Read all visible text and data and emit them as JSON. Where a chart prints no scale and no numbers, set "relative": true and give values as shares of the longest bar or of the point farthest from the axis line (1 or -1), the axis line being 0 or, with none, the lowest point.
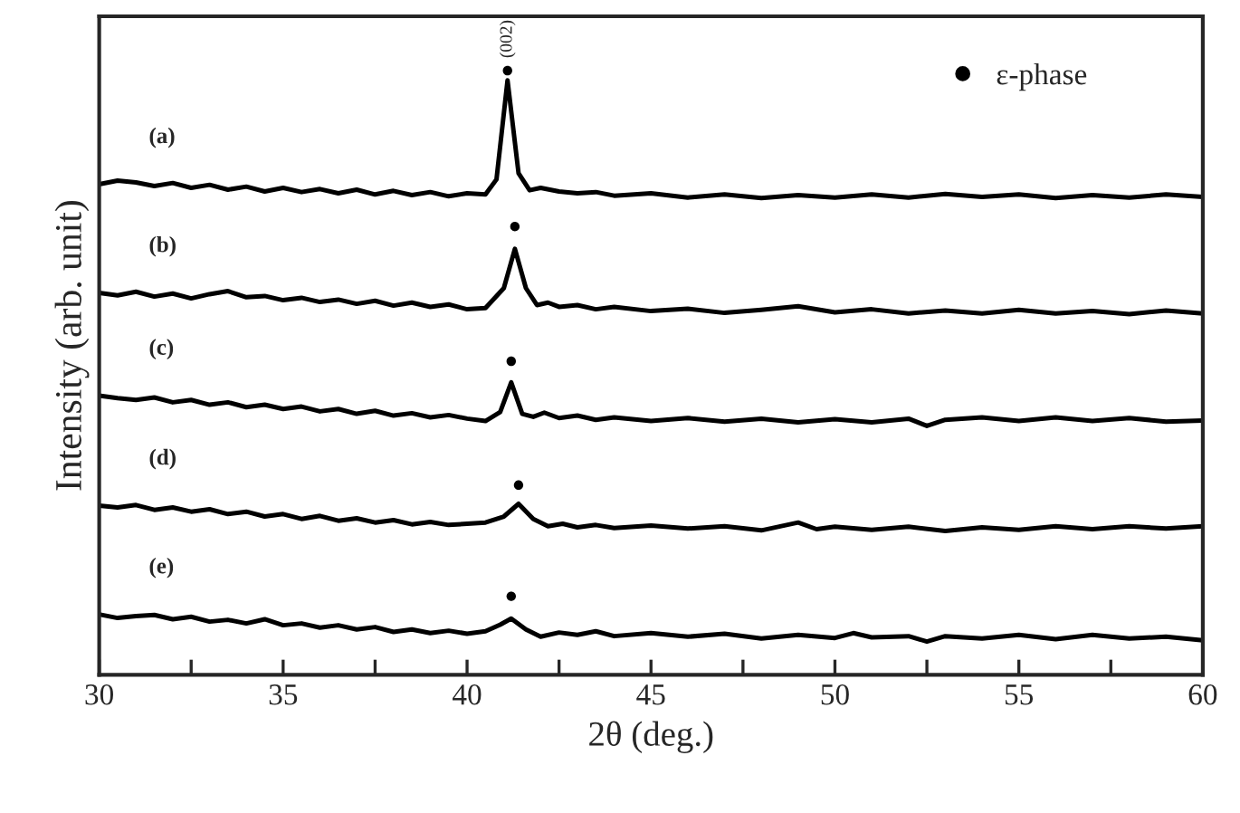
{
  "chart_data": {
    "type": "line",
    "relative": true,
    "xlabel": "2θ (deg.)",
    "ylabel": "Intensity (arb. unit)",
    "xlim": [
      30,
      60
    ],
    "xticks": [
      30,
      {
        "value": 32.5,
        "label": null
      },
      35,
      {
        "value": 37.5,
        "label": null
      },
      40,
      {
        "value": 42.5,
        "label": null
      },
      45,
      {
        "value": 47.5,
        "label": null
      },
      50,
      {
        "value": 52.5,
        "label": null
      },
      55,
      {
        "value": 57.5,
        "label": null
      },
      60
    ],
    "tick_labels": "x",
    "grid": false,
    "legend": "top right",
    "line_style": "solid",
    "annotations": [
      {
        "text": "(002)",
        "x": 41.1,
        "y": 1.0
      }
    ],
    "series": [
      {
        "name": "(a)",
        "color": "#000000",
        "x": [
          30,
          30.5,
          31,
          31.5,
          32,
          32.5,
          33,
          33.5,
          34,
          34.5,
          35,
          35.5,
          36,
          36.5,
          37,
          37.5,
          38,
          38.5,
          39,
          39.5,
          40,
          40.5,
          40.8,
          41.1,
          41.4,
          41.7,
          42,
          42.5,
          43,
          43.5,
          44,
          45,
          46,
          47,
          48,
          49,
          50,
          51,
          52,
          53,
          54,
          55,
          56,
          57,
          58,
          59,
          60
        ],
        "values": [
          0.812,
          0.818,
          0.815,
          0.809,
          0.814,
          0.806,
          0.811,
          0.803,
          0.808,
          0.8,
          0.806,
          0.799,
          0.804,
          0.797,
          0.803,
          0.795,
          0.801,
          0.794,
          0.799,
          0.792,
          0.797,
          0.795,
          0.82,
          0.984,
          0.83,
          0.802,
          0.806,
          0.8,
          0.797,
          0.799,
          0.793,
          0.797,
          0.79,
          0.795,
          0.789,
          0.794,
          0.79,
          0.795,
          0.79,
          0.796,
          0.791,
          0.795,
          0.789,
          0.794,
          0.79,
          0.795,
          0.791
        ]
      },
      {
        "name": "(b)",
        "color": "#000000",
        "x": [
          30,
          30.5,
          31,
          31.5,
          32,
          32.5,
          33,
          33.5,
          34,
          34.5,
          35,
          35.5,
          36,
          36.5,
          37,
          37.5,
          38,
          38.5,
          39,
          39.5,
          40,
          40.5,
          41.0,
          41.3,
          41.6,
          41.9,
          42.2,
          42.5,
          43,
          43.5,
          44,
          45,
          46,
          47,
          48,
          49,
          50,
          51,
          52,
          53,
          54,
          55,
          56,
          57,
          58,
          59,
          60
        ],
        "values": [
          0.632,
          0.628,
          0.634,
          0.626,
          0.631,
          0.623,
          0.63,
          0.635,
          0.625,
          0.627,
          0.62,
          0.624,
          0.617,
          0.621,
          0.614,
          0.619,
          0.611,
          0.616,
          0.609,
          0.613,
          0.605,
          0.607,
          0.64,
          0.705,
          0.64,
          0.612,
          0.616,
          0.609,
          0.612,
          0.605,
          0.609,
          0.602,
          0.606,
          0.599,
          0.604,
          0.61,
          0.6,
          0.605,
          0.598,
          0.603,
          0.598,
          0.604,
          0.598,
          0.602,
          0.597,
          0.603,
          0.598
        ]
      },
      {
        "name": "(c)",
        "color": "#000000",
        "x": [
          30,
          30.5,
          31,
          31.5,
          32,
          32.5,
          33,
          33.5,
          34,
          34.5,
          35,
          35.5,
          36,
          36.5,
          37,
          37.5,
          38,
          38.5,
          39,
          39.5,
          40,
          40.5,
          40.9,
          41.2,
          41.5,
          41.8,
          42.1,
          42.5,
          43,
          43.5,
          44,
          45,
          46,
          47,
          48,
          49,
          50,
          51,
          52,
          52.5,
          53,
          54,
          55,
          56,
          57,
          58,
          59,
          60
        ],
        "values": [
          0.462,
          0.458,
          0.455,
          0.459,
          0.451,
          0.455,
          0.447,
          0.451,
          0.443,
          0.447,
          0.44,
          0.444,
          0.436,
          0.44,
          0.432,
          0.437,
          0.429,
          0.433,
          0.426,
          0.43,
          0.424,
          0.42,
          0.435,
          0.484,
          0.432,
          0.427,
          0.434,
          0.425,
          0.429,
          0.422,
          0.426,
          0.42,
          0.425,
          0.419,
          0.424,
          0.418,
          0.423,
          0.418,
          0.424,
          0.412,
          0.422,
          0.426,
          0.42,
          0.426,
          0.42,
          0.425,
          0.419,
          0.421
        ]
      },
      {
        "name": "(d)",
        "color": "#000000",
        "x": [
          30,
          30.5,
          31,
          31.5,
          32,
          32.5,
          33,
          33.5,
          34,
          34.5,
          35,
          35.5,
          36,
          36.5,
          37,
          37.5,
          38,
          38.5,
          39,
          39.5,
          40,
          40.5,
          41.0,
          41.4,
          41.8,
          42.2,
          42.6,
          43,
          43.5,
          44,
          45,
          46,
          47,
          48,
          49,
          49.5,
          50,
          51,
          52,
          53,
          54,
          55,
          56,
          57,
          58,
          59,
          60
        ],
        "values": [
          0.28,
          0.277,
          0.281,
          0.273,
          0.277,
          0.27,
          0.274,
          0.266,
          0.27,
          0.262,
          0.266,
          0.258,
          0.263,
          0.255,
          0.259,
          0.252,
          0.256,
          0.249,
          0.253,
          0.248,
          0.25,
          0.252,
          0.262,
          0.283,
          0.258,
          0.246,
          0.25,
          0.244,
          0.248,
          0.243,
          0.247,
          0.242,
          0.246,
          0.239,
          0.252,
          0.241,
          0.245,
          0.24,
          0.245,
          0.238,
          0.244,
          0.24,
          0.246,
          0.241,
          0.246,
          0.242,
          0.246
        ]
      },
      {
        "name": "(e)",
        "color": "#000000",
        "x": [
          30,
          30.5,
          31,
          31.5,
          32,
          32.5,
          33,
          33.5,
          34,
          34.5,
          35,
          35.5,
          36,
          36.5,
          37,
          37.5,
          38,
          38.5,
          39,
          39.5,
          40,
          40.5,
          40.9,
          41.2,
          41.6,
          42,
          42.5,
          43,
          43.5,
          44,
          45,
          46,
          47,
          48,
          49,
          50,
          50.5,
          51,
          52,
          52.5,
          53,
          54,
          55,
          56,
          57,
          58,
          59,
          60
        ],
        "values": [
          0.1,
          0.094,
          0.097,
          0.099,
          0.092,
          0.096,
          0.088,
          0.091,
          0.085,
          0.092,
          0.082,
          0.085,
          0.078,
          0.082,
          0.075,
          0.079,
          0.071,
          0.075,
          0.069,
          0.073,
          0.068,
          0.072,
          0.083,
          0.093,
          0.075,
          0.063,
          0.07,
          0.066,
          0.072,
          0.064,
          0.069,
          0.063,
          0.068,
          0.06,
          0.066,
          0.061,
          0.069,
          0.062,
          0.064,
          0.055,
          0.064,
          0.06,
          0.066,
          0.059,
          0.066,
          0.06,
          0.063,
          0.057
        ]
      },
      {
        "name": "ε-phase",
        "type": "scatter",
        "marker": "circle",
        "color": "#000000",
        "x": [
          41.1,
          41.3,
          41.2,
          41.4,
          41.2
        ],
        "values": [
          1.0,
          0.742,
          0.519,
          0.314,
          0.13
        ]
      }
    ]
  }
}
